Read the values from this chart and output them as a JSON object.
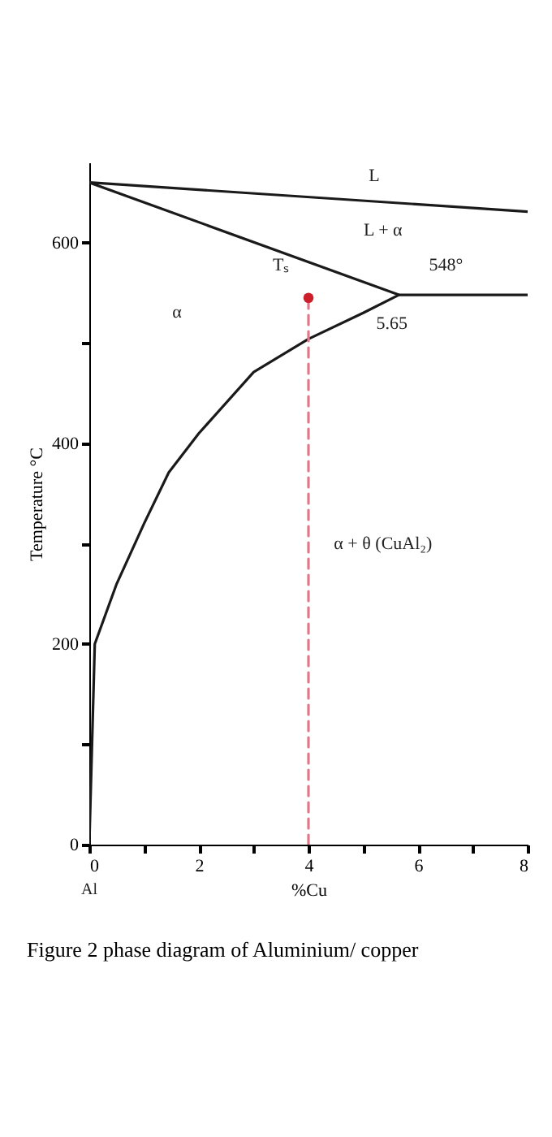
{
  "chart_data": {
    "type": "line",
    "title": "Figure 2 phase diagram of Aluminium/ copper",
    "xlabel": "%Cu",
    "ylabel": "Temperature °C",
    "xlim": [
      0,
      8
    ],
    "xticks": [
      0,
      {
        "value": 1,
        "label": null
      },
      2,
      {
        "value": 3,
        "label": null
      },
      4,
      {
        "value": 5,
        "label": null
      },
      6,
      {
        "value": 7,
        "label": null
      },
      8
    ],
    "ylim": [
      0,
      680
    ],
    "yticks": [
      0,
      {
        "value": 100,
        "label": null
      },
      200,
      {
        "value": 300,
        "label": null
      },
      400,
      {
        "value": 500,
        "label": null
      },
      600
    ],
    "grid": false,
    "line_style": "solid",
    "series": [
      {
        "color": "#1a1a1a",
        "x": [
          0,
          0.05,
          0.1,
          0.5,
          1,
          1.45,
          2,
          3,
          4,
          5,
          5.65
        ],
        "values": [
          0,
          100,
          200,
          260,
          320,
          371,
          410,
          471,
          504,
          530,
          548
        ]
      },
      {
        "color": "#1a1a1a",
        "x": [
          8,
          0,
          5.65,
          8
        ],
        "values": [
          631,
          660,
          548,
          548
        ]
      },
      {
        "color": "#e0788a",
        "line_style": "dashed",
        "x": [
          4,
          4
        ],
        "values": [
          0,
          545
        ]
      },
      {
        "type": "scatter",
        "color": "#cc1f2a",
        "marker": "circle",
        "x": [
          4
        ],
        "values": [
          545
        ]
      }
    ],
    "annotations": [
      "α",
      "L",
      "L + α",
      "α + θ (CuAl₂)",
      "Al",
      {
        "text": "548°",
        "x": 6.2,
        "y": 548
      },
      {
        "text": "5.65",
        "x": 5.65,
        "y": 548
      },
      {
        "text": "Tₛ",
        "x": 4,
        "y": 545
      }
    ]
  }
}
